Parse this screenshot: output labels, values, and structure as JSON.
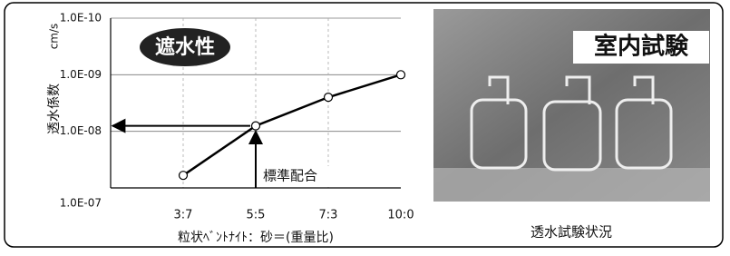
{
  "chart_data": {
    "type": "line",
    "y_label": "透水係数",
    "y_unit": "cm/s",
    "x_label": "粒状ﾍﾞﾝﾄﾅｲﾄ：砂＝(重量比)",
    "badge": "遮水性",
    "annotation": "標準配合",
    "categories": [
      "3:7",
      "5:5",
      "7:3",
      "10:0"
    ],
    "series": [
      {
        "name": "透水係数",
        "color": "#000000",
        "values": [
          6e-08,
          8e-09,
          2.5e-09,
          1e-09
        ]
      }
    ],
    "ylim": [
      1e-10,
      1e-07
    ],
    "y_scale": "log",
    "y_inverted": true,
    "yticks": [
      {
        "value": 1e-10,
        "label": "1.0E-10"
      },
      {
        "value": 1e-09,
        "label": "1.0E-09"
      },
      {
        "value": 1e-08,
        "label": "1.0E-08"
      },
      {
        "value": 1e-07,
        "label": "1.0E-07"
      }
    ],
    "grid": true
  },
  "photo": {
    "title": "室内試験",
    "caption": "透水試験状況"
  }
}
